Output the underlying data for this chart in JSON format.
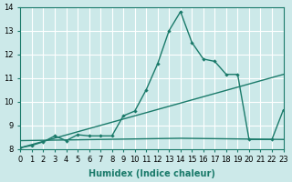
{
  "xlabel": "Humidex (Indice chaleur)",
  "xlim": [
    0,
    23
  ],
  "ylim": [
    8,
    14
  ],
  "yticks": [
    8,
    9,
    10,
    11,
    12,
    13,
    14
  ],
  "xticks": [
    0,
    1,
    2,
    3,
    4,
    5,
    6,
    7,
    8,
    9,
    10,
    11,
    12,
    13,
    14,
    15,
    16,
    17,
    18,
    19,
    20,
    21,
    22,
    23
  ],
  "bg_color": "#cce9e9",
  "grid_color": "#ffffff",
  "line_color": "#1a7a6a",
  "line1_x": [
    0,
    1,
    2,
    3,
    4,
    5,
    6,
    7,
    8,
    9,
    10,
    11,
    12,
    13,
    14,
    15,
    16,
    17,
    18,
    19,
    20,
    22,
    23
  ],
  "line1_y": [
    8.05,
    8.15,
    8.3,
    8.55,
    8.35,
    8.6,
    8.55,
    8.55,
    8.55,
    9.4,
    9.6,
    10.5,
    11.6,
    13.0,
    13.8,
    12.5,
    11.8,
    11.7,
    11.15,
    11.15,
    8.4,
    8.4,
    9.65
  ],
  "line2_x": [
    0,
    23
  ],
  "line2_y": [
    8.05,
    11.15
  ],
  "line3_x": [
    0,
    14,
    23
  ],
  "line3_y": [
    8.35,
    8.45,
    8.4
  ]
}
